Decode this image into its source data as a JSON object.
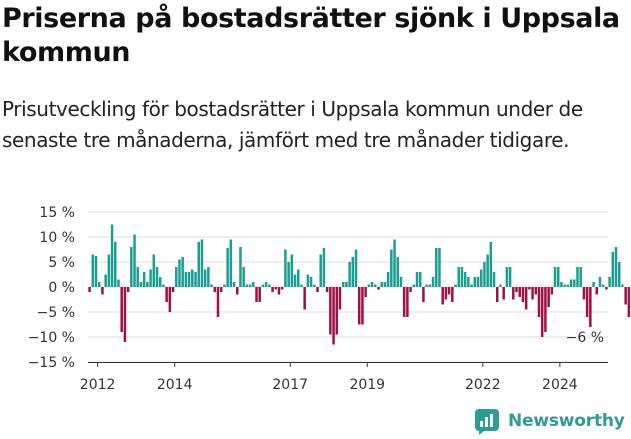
{
  "title": "Priserna på bostadsrätter sjönk i Uppsala kommun",
  "subtitle": "Prisutveckling för bostadsrätter i Uppsala kommun under de senaste tre månaderna, jämfört med tre månader tidigare.",
  "brand": {
    "name": "Newsworthy"
  },
  "colors": {
    "positive": "#1a9e93",
    "negative": "#9e1046",
    "grid": "#dddddd",
    "axis": "#333333"
  },
  "chart_data": {
    "type": "bar",
    "x_start": "2011-10",
    "x_end": "2025-04",
    "x_unit": "month",
    "ylim": [
      -15,
      15
    ],
    "yticks": [
      15,
      10,
      5,
      0,
      -5,
      -10,
      -15
    ],
    "ytick_labels": [
      "15 %",
      "10 %",
      "5 %",
      "0 %",
      "−5 %",
      "−10 %",
      "−15 %"
    ],
    "xticks": [
      "2012",
      "2014",
      "2017",
      "2019",
      "2022",
      "2024"
    ],
    "grid": true,
    "last_value_label": "−6 %",
    "series": [
      {
        "values": [
          -1,
          6.5,
          6.2,
          1.0,
          -1.5,
          2.5,
          6.5,
          12.5,
          9.0,
          1.5,
          -9.0,
          -11.0,
          -1.0,
          8.0,
          10.5,
          4.0,
          1.0,
          3.0,
          1.0,
          3.5,
          6.5,
          4.0,
          2.0,
          0.5,
          -3.0,
          -5.0,
          -1.0,
          4.0,
          5.5,
          6.0,
          3.0,
          3.0,
          3.5,
          3.0,
          9.0,
          9.5,
          3.5,
          4.0,
          0.5,
          -1.0,
          -6.0,
          -1.0,
          0.5,
          7.8,
          9.5,
          1.0,
          -1.5,
          8.0,
          4.0,
          0.5,
          0.5,
          1.0,
          -3.0,
          -3.0,
          0.5,
          1.0,
          0.5,
          -1.0,
          -0.5,
          -1.5,
          -0.5,
          7.5,
          5.0,
          6.5,
          2.5,
          3.5,
          0.5,
          -4.5,
          2.5,
          2.0,
          0.5,
          -1.0,
          6.5,
          7.8,
          -1.0,
          -9.5,
          -11.5,
          -9.5,
          -4.5,
          1.0,
          1.0,
          5.0,
          6.0,
          7.5,
          -7.5,
          -7.5,
          -2.0,
          0.5,
          1.0,
          0.5,
          -0.5,
          1.0,
          1.0,
          3.0,
          7.5,
          9.5,
          6.0,
          2.0,
          -6.0,
          -6.0,
          -1.0,
          0.5,
          3.0,
          3.0,
          -3.0,
          0.5,
          0.5,
          2.0,
          7.8,
          7.8,
          -3.5,
          -2.5,
          -1.5,
          -3.0,
          0.5,
          4.0,
          4.0,
          3.0,
          2.0,
          0.5,
          2.0,
          2.0,
          3.5,
          5.0,
          6.5,
          9.0,
          3.0,
          -3.0,
          0.5,
          -2.5,
          4.0,
          4.0,
          -2.5,
          -1.0,
          -2.0,
          -3.0,
          -4.5,
          -0.5,
          -2.5,
          -1.5,
          -6.0,
          -10.0,
          -9.0,
          -4.0,
          -1.5,
          4.0,
          4.0,
          1.0,
          0.5,
          0.5,
          1.5,
          1.5,
          4.0,
          4.0,
          -2.5,
          -6.0,
          -8.0,
          1.0,
          -1.5,
          2.0,
          0.5,
          -0.5,
          2.0,
          7.0,
          8.0,
          5.0,
          0.5,
          -3.5,
          -6.0
        ]
      }
    ]
  }
}
